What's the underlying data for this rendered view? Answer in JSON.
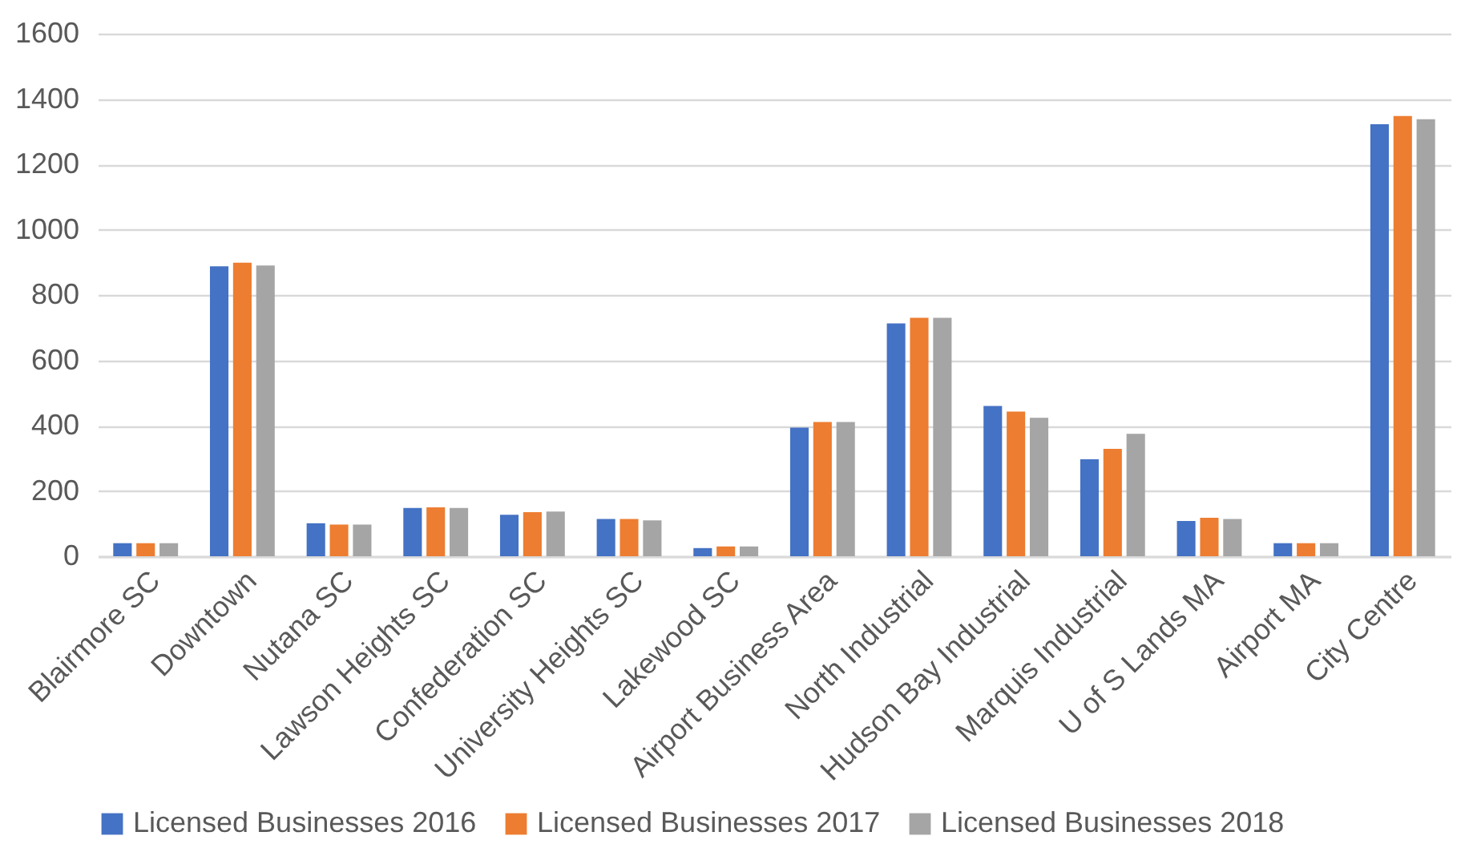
{
  "chart_data": {
    "type": "bar",
    "categories": [
      "Blairmore SC",
      "Downtown",
      "Nutana SC",
      "Lawson Heights SC",
      "Confederation SC",
      "University Heights SC",
      "Lakewood SC",
      "Airport Business Area",
      "North Industrial",
      "Hudson Bay Industrial",
      "Marquis Industrial",
      "U of S Lands MA",
      "Airport MA",
      "City Centre"
    ],
    "series": [
      {
        "name": "Licensed Businesses  2016",
        "color": "#4472c4",
        "values": [
          40,
          888,
          101,
          148,
          127,
          114,
          25,
          394,
          713,
          460,
          297,
          108,
          40,
          1323
        ]
      },
      {
        "name": "Licensed Businesses  2017",
        "color": "#ed7d31",
        "values": [
          40,
          899,
          97,
          150,
          135,
          114,
          30,
          411,
          730,
          443,
          329,
          118,
          40,
          1348
        ]
      },
      {
        "name": "Licensed Businesses  2018",
        "color": "#a5a5a5",
        "values": [
          40,
          890,
          97,
          148,
          137,
          110,
          30,
          411,
          730,
          424,
          375,
          114,
          40,
          1338
        ]
      }
    ],
    "ylim": [
      0,
      1600
    ],
    "yticks": [
      0,
      200,
      400,
      600,
      800,
      1000,
      1200,
      1400,
      1600
    ],
    "grid": "y",
    "legend": "bottom"
  }
}
